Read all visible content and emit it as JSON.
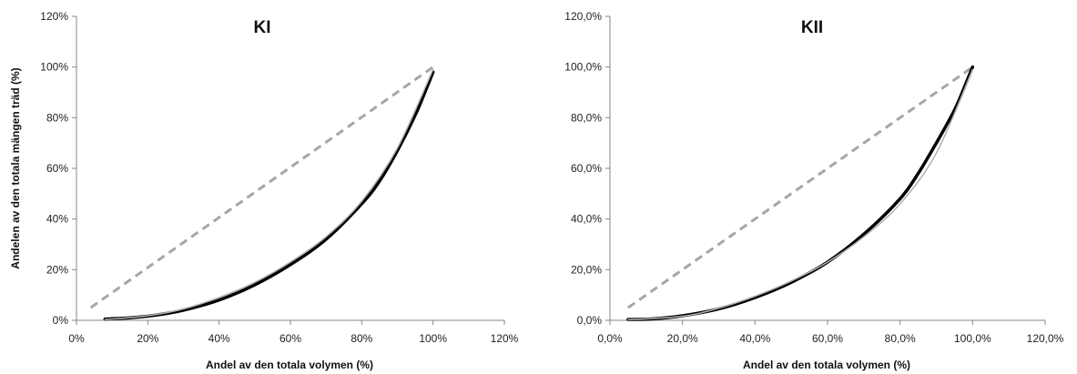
{
  "chart_data": [
    {
      "type": "line",
      "title": "KI",
      "xlabel": "Andel av den totala volymen (%)",
      "ylabel": "Andelen av den totala mängen träd (%)",
      "xlim": [
        0,
        120
      ],
      "ylim": [
        0,
        120
      ],
      "x_ticks": [
        "0%",
        "20%",
        "40%",
        "60%",
        "80%",
        "100%",
        "120%"
      ],
      "y_ticks": [
        "0%",
        "20%",
        "40%",
        "60%",
        "80%",
        "100%",
        "120%"
      ],
      "grid": false,
      "legend": "none",
      "series": [
        {
          "style": "dashed",
          "color": "#a6a6a6",
          "points": [
            [
              4,
              5
            ],
            [
              100,
              100
            ]
          ]
        },
        {
          "style": "solid-thick",
          "color": "#000000",
          "points": [
            [
              8,
              0.5
            ],
            [
              15,
              1
            ],
            [
              22,
              2
            ],
            [
              30,
              4
            ],
            [
              40,
              8
            ],
            [
              50,
              14
            ],
            [
              60,
              22
            ],
            [
              70,
              32
            ],
            [
              80,
              46
            ],
            [
              85,
              55
            ],
            [
              90,
              67
            ],
            [
              95,
              81
            ],
            [
              98,
              91
            ],
            [
              100,
              98
            ]
          ]
        },
        {
          "style": "solid",
          "color": "#b0b0b0",
          "points": [
            [
              8,
              0.3
            ],
            [
              20,
              1.8
            ],
            [
              30,
              4.5
            ],
            [
              40,
              9
            ],
            [
              50,
              15
            ],
            [
              60,
              23
            ],
            [
              70,
              33
            ],
            [
              80,
              47
            ],
            [
              90,
              68
            ],
            [
              100,
              99
            ]
          ]
        }
      ]
    },
    {
      "type": "line",
      "title": "KII",
      "xlabel": "Andel av den totala volymen (%)",
      "ylabel": "",
      "xlim": [
        0,
        120
      ],
      "ylim": [
        0,
        120
      ],
      "x_ticks": [
        "0,0%",
        "20,0%",
        "40,0%",
        "60,0%",
        "80,0%",
        "100,0%",
        "120,0%"
      ],
      "y_ticks": [
        "0,0%",
        "20,0%",
        "40,0%",
        "60,0%",
        "80,0%",
        "100,0%",
        "120,0%"
      ],
      "grid": false,
      "legend": "none",
      "series": [
        {
          "style": "dashed",
          "color": "#a6a6a6",
          "points": [
            [
              5,
              5
            ],
            [
              100,
              100
            ]
          ]
        },
        {
          "style": "solid-thick",
          "color": "#000000",
          "points": [
            [
              5,
              0.3
            ],
            [
              12,
              0.6
            ],
            [
              20,
              1.8
            ],
            [
              30,
              4.5
            ],
            [
              40,
              9
            ],
            [
              50,
              15
            ],
            [
              60,
              23
            ],
            [
              70,
              34
            ],
            [
              80,
              48
            ],
            [
              85,
              58
            ],
            [
              90,
              70
            ],
            [
              95,
              83
            ],
            [
              98,
              93
            ],
            [
              100,
              100
            ]
          ]
        },
        {
          "style": "solid",
          "color": "#b0b0b0",
          "points": [
            [
              5,
              0.2
            ],
            [
              20,
              1.6
            ],
            [
              30,
              4.8
            ],
            [
              40,
              9.5
            ],
            [
              50,
              15.5
            ],
            [
              60,
              23
            ],
            [
              70,
              33
            ],
            [
              80,
              46
            ],
            [
              90,
              66
            ],
            [
              100,
              99
            ]
          ]
        }
      ]
    }
  ]
}
